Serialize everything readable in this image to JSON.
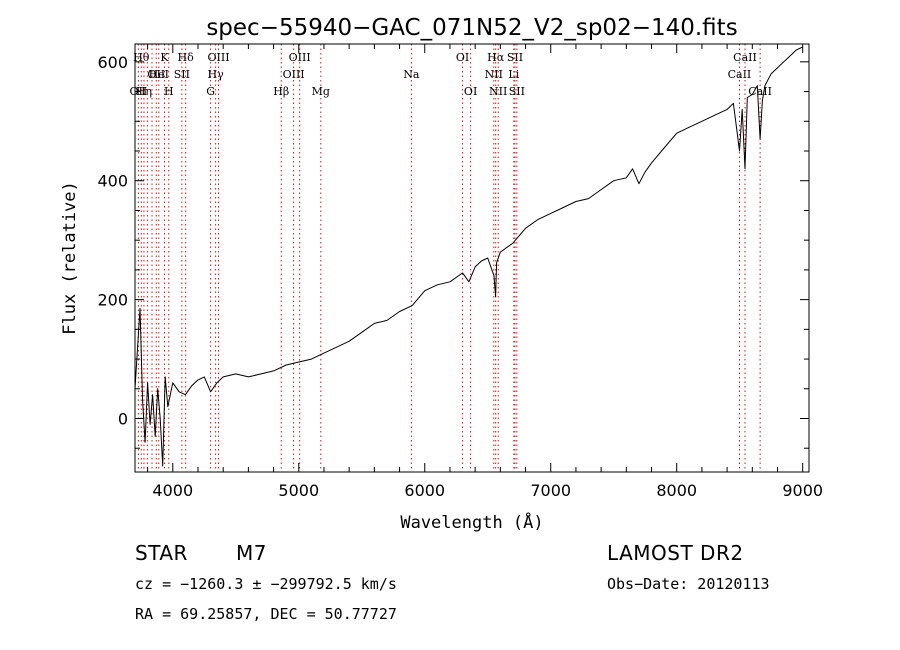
{
  "chart_data": {
    "type": "line",
    "title": "spec−55940−GAC_071N52_V2_sp02−140.fits",
    "xlabel": "Wavelength (Å)",
    "ylabel": "Flux (relative)",
    "xlim": [
      3700,
      9050
    ],
    "ylim": [
      -90,
      630
    ],
    "x_ticks": [
      4000,
      5000,
      6000,
      7000,
      8000,
      9000
    ],
    "y_ticks": [
      0,
      200,
      400,
      600
    ],
    "grid": false,
    "series": [
      {
        "color": "#000000",
        "x": [
          3700,
          3740,
          3760,
          3780,
          3800,
          3820,
          3840,
          3860,
          3880,
          3900,
          3920,
          3940,
          3960,
          3980,
          4000,
          4050,
          4100,
          4150,
          4200,
          4250,
          4300,
          4350,
          4400,
          4500,
          4600,
          4700,
          4800,
          4900,
          5000,
          5100,
          5200,
          5300,
          5400,
          5500,
          5600,
          5700,
          5800,
          5900,
          6000,
          6100,
          6200,
          6300,
          6350,
          6400,
          6450,
          6500,
          6550,
          6562,
          6570,
          6600,
          6700,
          6800,
          6900,
          7000,
          7100,
          7200,
          7300,
          7400,
          7500,
          7600,
          7650,
          7700,
          7750,
          7800,
          7900,
          8000,
          8100,
          8200,
          8300,
          8400,
          8450,
          8498,
          8520,
          8542,
          8560,
          8600,
          8640,
          8662,
          8680,
          8700,
          8750,
          8800,
          8850,
          8900,
          8950,
          9000
        ],
        "y": [
          50,
          185,
          30,
          -40,
          60,
          -10,
          40,
          -30,
          50,
          0,
          -80,
          70,
          20,
          40,
          60,
          45,
          40,
          55,
          65,
          70,
          45,
          60,
          70,
          75,
          70,
          75,
          80,
          90,
          95,
          100,
          110,
          120,
          130,
          145,
          160,
          165,
          180,
          190,
          215,
          225,
          230,
          245,
          230,
          255,
          265,
          270,
          240,
          205,
          262,
          280,
          295,
          320,
          335,
          345,
          355,
          365,
          370,
          385,
          400,
          405,
          420,
          395,
          415,
          430,
          455,
          480,
          490,
          500,
          510,
          520,
          530,
          450,
          520,
          420,
          540,
          545,
          560,
          470,
          535,
          560,
          580,
          590,
          600,
          610,
          620,
          625
        ]
      }
    ],
    "line_markers": [
      {
        "x": 3727,
        "labels": [
          "OII"
        ],
        "row": 2
      },
      {
        "x": 3750,
        "labels": [
          "Hθ"
        ],
        "row": 0
      },
      {
        "x": 3771,
        "labels": [
          "Hη"
        ],
        "row": 2
      },
      {
        "x": 3798,
        "labels": [],
        "row": 0
      },
      {
        "x": 3835,
        "labels": [],
        "row": 0
      },
      {
        "x": 3869,
        "labels": [
          "OII"
        ],
        "row": 1
      },
      {
        "x": 3889,
        "labels": [
          "HeI"
        ],
        "row": 1
      },
      {
        "x": 3934,
        "labels": [
          "K"
        ],
        "row": 0
      },
      {
        "x": 3968,
        "labels": [
          "H"
        ],
        "row": 2
      },
      {
        "x": 4072,
        "labels": [
          "SII"
        ],
        "row": 1
      },
      {
        "x": 4102,
        "labels": [
          "Hδ"
        ],
        "row": 0
      },
      {
        "x": 4300,
        "labels": [
          "G"
        ],
        "row": 2
      },
      {
        "x": 4340,
        "labels": [
          "Hγ"
        ],
        "row": 1
      },
      {
        "x": 4363,
        "labels": [
          "OIII"
        ],
        "row": 0
      },
      {
        "x": 4861,
        "labels": [
          "Hβ"
        ],
        "row": 2
      },
      {
        "x": 4959,
        "labels": [
          "OIII"
        ],
        "row": 1
      },
      {
        "x": 5007,
        "labels": [
          "OIII"
        ],
        "row": 0
      },
      {
        "x": 5175,
        "labels": [
          "Mg"
        ],
        "row": 2
      },
      {
        "x": 5894,
        "labels": [
          "Na"
        ],
        "row": 1
      },
      {
        "x": 6300,
        "labels": [
          "OI"
        ],
        "row": 0
      },
      {
        "x": 6364,
        "labels": [
          "OI"
        ],
        "row": 2
      },
      {
        "x": 6548,
        "labels": [
          "NII"
        ],
        "row": 1
      },
      {
        "x": 6563,
        "labels": [
          "Hα"
        ],
        "row": 0
      },
      {
        "x": 6583,
        "labels": [
          "NII"
        ],
        "row": 2
      },
      {
        "x": 6707,
        "labels": [
          "Li"
        ],
        "row": 1
      },
      {
        "x": 6716,
        "labels": [
          "SII"
        ],
        "row": 0
      },
      {
        "x": 6731,
        "labels": [
          "SII"
        ],
        "row": 2
      },
      {
        "x": 8498,
        "labels": [
          "CaII"
        ],
        "row": 1
      },
      {
        "x": 8542,
        "labels": [
          "CaII"
        ],
        "row": 0
      },
      {
        "x": 8662,
        "labels": [
          "CaII"
        ],
        "row": 2
      }
    ]
  },
  "info": {
    "class": "STAR",
    "subclass": "M7",
    "survey": "LAMOST DR2",
    "cz_line": "cz = −1260.3 ± −299792.5 km/s",
    "obs_date_line": "Obs−Date: 20120113",
    "radec_line": "RA =  69.25857, DEC =  50.77727"
  }
}
